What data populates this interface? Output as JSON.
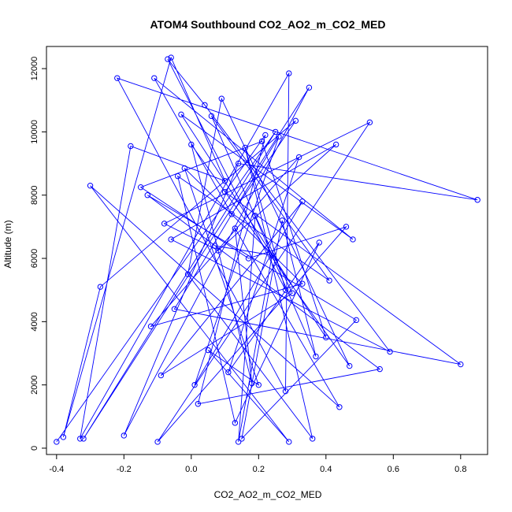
{
  "chart_data": {
    "type": "line",
    "title": "ATOM4 Southbound CO2_AO2_m_CO2_MED",
    "xlabel": "CO2_AO2_m_CO2_MED",
    "ylabel": "Altitude (m)",
    "xlim": [
      -0.43,
      0.88
    ],
    "ylim": [
      -200,
      12700
    ],
    "xticks": [
      -0.4,
      -0.2,
      0.0,
      0.2,
      0.4,
      0.6,
      0.8
    ],
    "xtick_labels": [
      "-0.4",
      "-0.2",
      "0.0",
      "0.2",
      "0.4",
      "0.6",
      "0.8"
    ],
    "yticks": [
      0,
      2000,
      4000,
      6000,
      8000,
      10000,
      12000
    ],
    "ytick_labels": [
      "0",
      "2000",
      "4000",
      "6000",
      "8000",
      "10000",
      "12000"
    ],
    "series_color": "#0000ff",
    "marker": "open-circle",
    "grid": false,
    "series": [
      {
        "x": [
          -0.4,
          0.25,
          -0.32,
          0.35,
          -0.2,
          0.14,
          0.85,
          -0.22,
          0.28,
          0.29,
          -0.33,
          -0.18,
          0.1,
          -0.06,
          -0.38,
          -0.27,
          0.31,
          0.12,
          -0.11,
          0.48,
          -0.03,
          0.4,
          0.21,
          -0.15,
          0.17,
          0.46,
          -0.1,
          0.53,
          -0.08,
          0.08,
          0.43,
          -0.06,
          0.59,
          0.04,
          -0.07,
          0.28,
          0.16,
          0.36,
          -0.01,
          0.09,
          0.47,
          0.0,
          0.18,
          0.13,
          0.44,
          -0.3,
          0.29,
          0.05,
          0.2,
          -0.02,
          0.33,
          -0.12,
          0.32,
          0.11,
          0.38,
          0.13,
          -0.04,
          0.41,
          0.06,
          0.37,
          0.27,
          0.15,
          0.49,
          -0.13,
          0.56,
          0.02,
          0.22,
          0.1,
          0.8,
          -0.05,
          0.26,
          0.01,
          0.33,
          -0.09,
          0.3,
          0.19,
          0.14,
          0.24,
          0.07
        ],
        "y": [
          200,
          10000,
          300,
          11400,
          400,
          9000,
          7850,
          11700,
          1800,
          11850,
          300,
          9550,
          8450,
          12350,
          350,
          5100,
          10350,
          7400,
          11700,
          6600,
          10550,
          3500,
          9700,
          8250,
          6000,
          7000,
          200,
          10300,
          7100,
          6250,
          9600,
          6600,
          3050,
          10850,
          12300,
          5000,
          9500,
          300,
          5500,
          11050,
          2600,
          9600,
          2050,
          6950,
          1300,
          8300,
          200,
          3100,
          2000,
          8850,
          5200,
          3850,
          9200,
          2400,
          6500,
          800,
          8600,
          5300,
          10500,
          2900,
          7200,
          300,
          4050,
          8000,
          2500,
          1400,
          9900,
          8100,
          2650,
          4400,
          9850,
          2000,
          7800,
          2300,
          4900,
          7350,
          200,
          6100,
          6400
        ]
      }
    ]
  }
}
